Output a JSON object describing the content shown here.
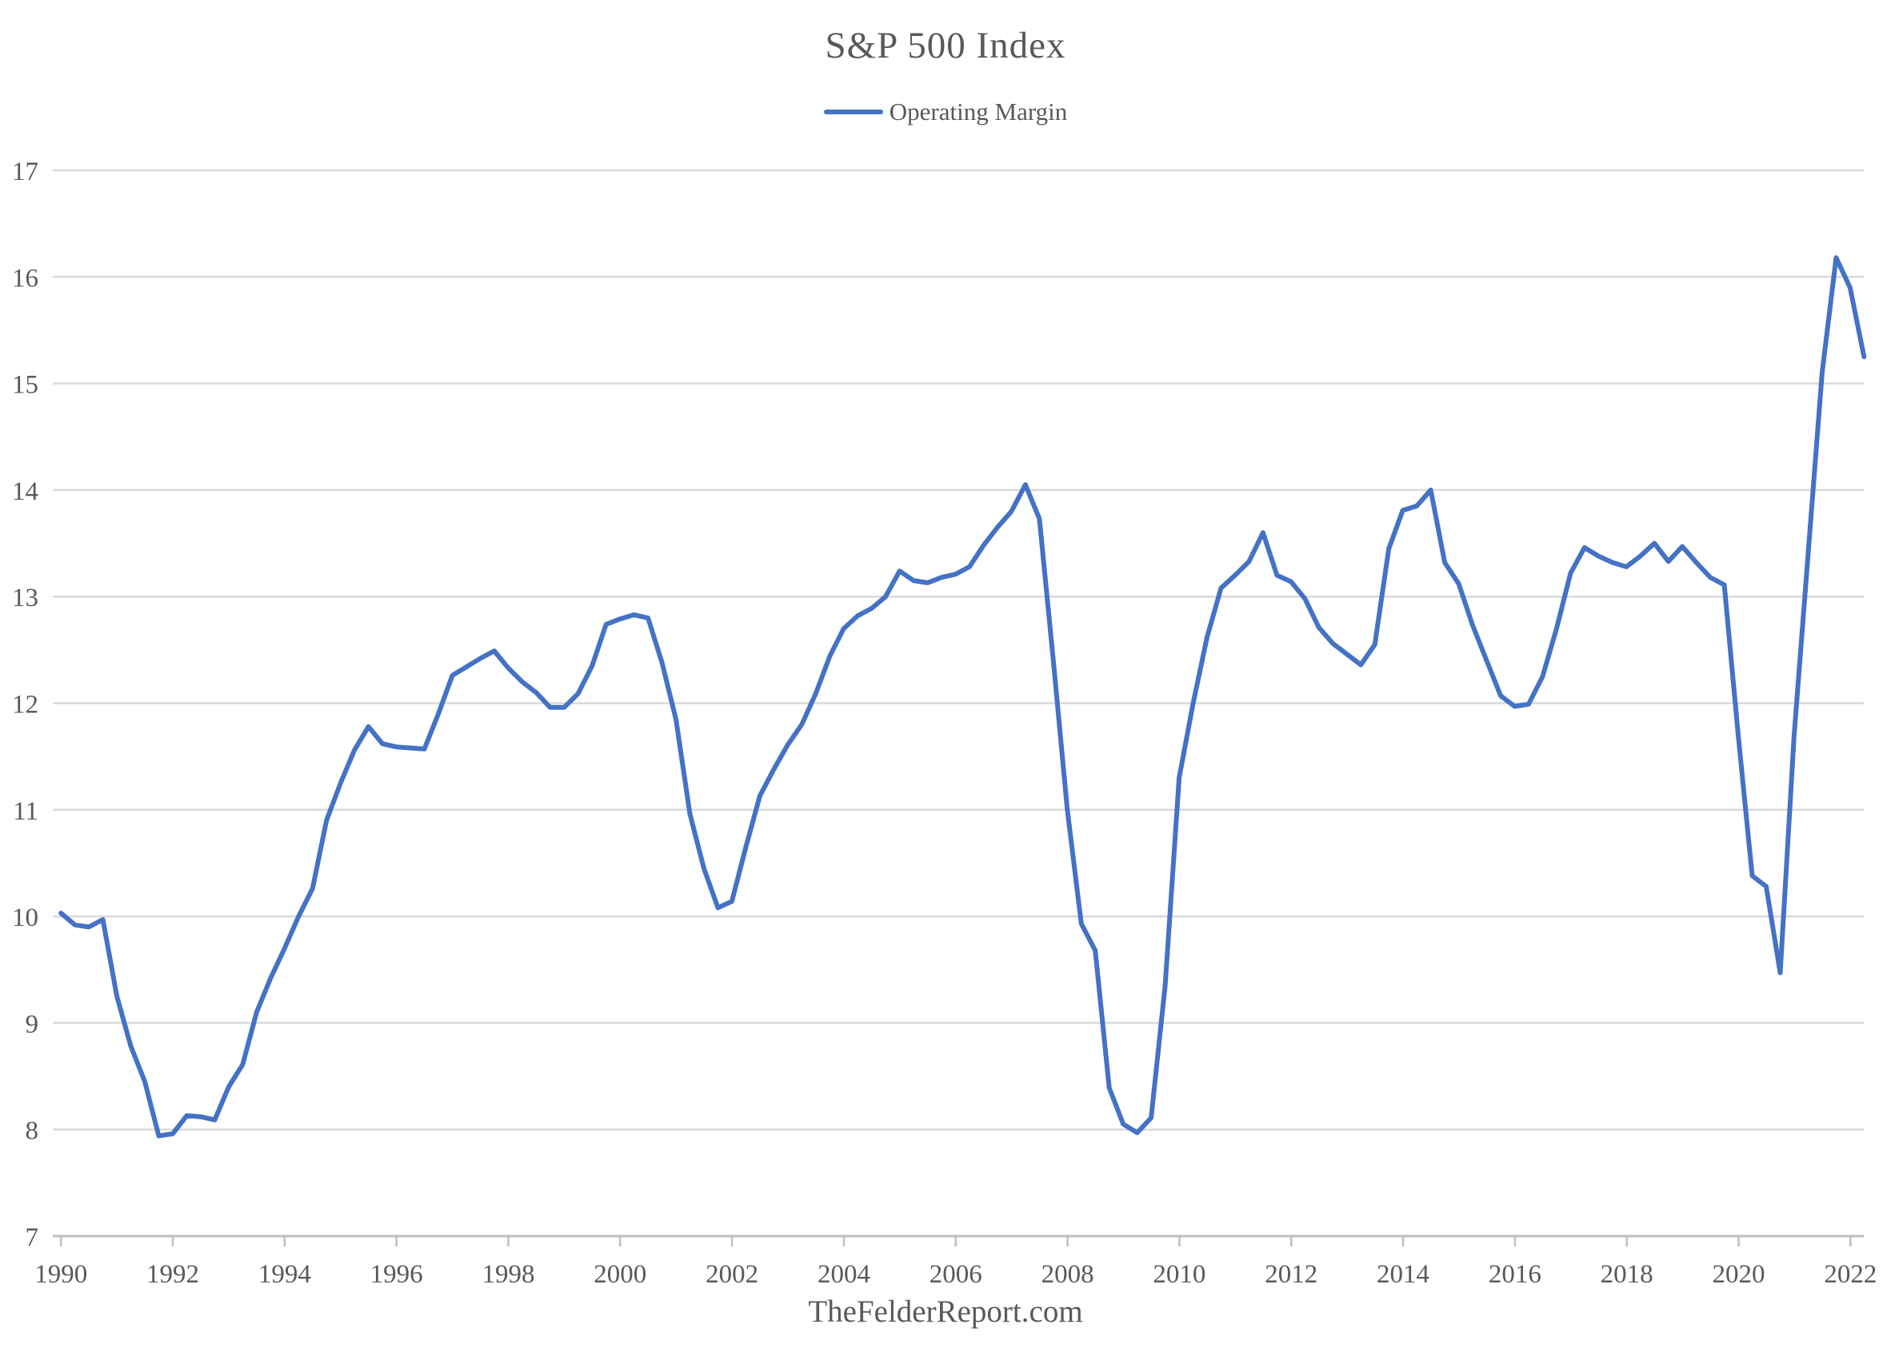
{
  "chart": {
    "title": "S&P 500 Index",
    "legend": {
      "label": "Operating Margin",
      "swatch_color": "#4472C4"
    },
    "footer": "TheFelderReport.com"
  },
  "colors": {
    "line": "#4472C4",
    "gridline": "#D9D9D9",
    "axis_line": "#BFBFBF",
    "text": "#595959",
    "background": "#FFFFFF"
  },
  "chart_data": {
    "type": "line",
    "title": "S&P 500 Index",
    "xlabel": "",
    "ylabel": "",
    "ylim": [
      7,
      17
    ],
    "y_ticks": [
      7,
      8,
      9,
      10,
      11,
      12,
      13,
      14,
      15,
      16,
      17
    ],
    "x_tick_labels": [
      "1990",
      "1992",
      "1994",
      "1996",
      "1998",
      "2000",
      "2002",
      "2004",
      "2006",
      "2008",
      "2010",
      "2012",
      "2014",
      "2016",
      "2018",
      "2020",
      "2022"
    ],
    "grid": "horizontal",
    "legend_position": "top-center",
    "x_start": "1990Q1",
    "x_end": "2022Q2",
    "frequency": "quarterly",
    "series": [
      {
        "name": "Operating Margin",
        "color": "#4472C4",
        "values": [
          10.03,
          9.92,
          9.9,
          9.97,
          9.25,
          8.78,
          8.45,
          7.94,
          7.96,
          8.13,
          8.12,
          8.09,
          8.4,
          8.61,
          9.1,
          9.42,
          9.7,
          10.0,
          10.26,
          10.9,
          11.25,
          11.56,
          11.78,
          11.62,
          11.59,
          11.58,
          11.57,
          11.9,
          12.26,
          12.34,
          12.42,
          12.49,
          12.33,
          12.2,
          12.1,
          11.96,
          11.96,
          12.09,
          12.35,
          12.74,
          12.79,
          12.83,
          12.8,
          12.38,
          11.85,
          10.96,
          10.45,
          10.08,
          10.14,
          10.65,
          11.13,
          11.38,
          11.61,
          11.8,
          12.09,
          12.44,
          12.7,
          12.82,
          12.89,
          13.0,
          13.24,
          13.15,
          13.13,
          13.18,
          13.21,
          13.28,
          13.48,
          13.65,
          13.8,
          14.05,
          13.73,
          12.4,
          11.0,
          9.93,
          9.68,
          8.39,
          8.05,
          7.97,
          8.11,
          9.35,
          11.3,
          12.0,
          12.62,
          13.08,
          13.2,
          13.33,
          13.6,
          13.2,
          13.14,
          12.98,
          12.71,
          12.56,
          12.46,
          12.36,
          12.55,
          13.45,
          13.81,
          13.85,
          14.0,
          13.32,
          13.12,
          12.73,
          12.4,
          12.07,
          11.97,
          11.99,
          12.25,
          12.7,
          13.22,
          13.46,
          13.38,
          13.32,
          13.28,
          13.38,
          13.5,
          13.33,
          13.47,
          13.32,
          13.18,
          13.11,
          11.7,
          10.38,
          10.28,
          9.47,
          11.7,
          13.4,
          15.1,
          16.18,
          15.9,
          15.25
        ]
      }
    ]
  }
}
